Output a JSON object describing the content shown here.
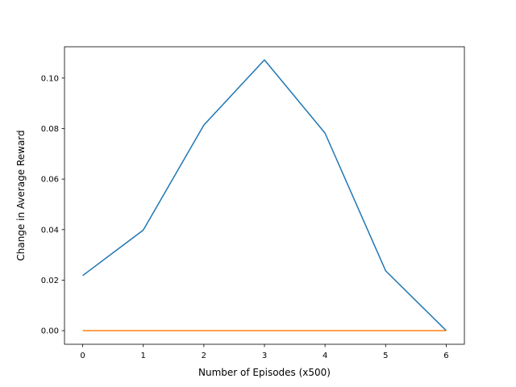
{
  "chart_data": {
    "type": "line",
    "title": "",
    "xlabel": "Number of Episodes (x500)",
    "ylabel": "Change in Average Reward",
    "x": [
      0,
      1,
      2,
      3,
      4,
      5,
      6
    ],
    "xlim": [
      -0.3,
      6.3
    ],
    "ylim": [
      -0.0054,
      0.1124
    ],
    "xticks": [
      0,
      1,
      2,
      3,
      4,
      5,
      6
    ],
    "xtick_labels": [
      "0",
      "1",
      "2",
      "3",
      "4",
      "5",
      "6"
    ],
    "yticks": [
      0.0,
      0.02,
      0.04,
      0.06,
      0.08,
      0.1
    ],
    "ytick_labels": [
      "0.00",
      "0.02",
      "0.04",
      "0.06",
      "0.08",
      "0.10"
    ],
    "grid": false,
    "legend": "none",
    "series": [
      {
        "color": "#1f77b4",
        "values": [
          0.0218,
          0.0398,
          0.0814,
          0.1072,
          0.0782,
          0.0237,
          0.0
        ]
      },
      {
        "color": "#ff7f0e",
        "values": [
          0.0,
          0.0,
          0.0,
          0.0,
          0.0,
          0.0,
          0.0
        ]
      }
    ]
  }
}
